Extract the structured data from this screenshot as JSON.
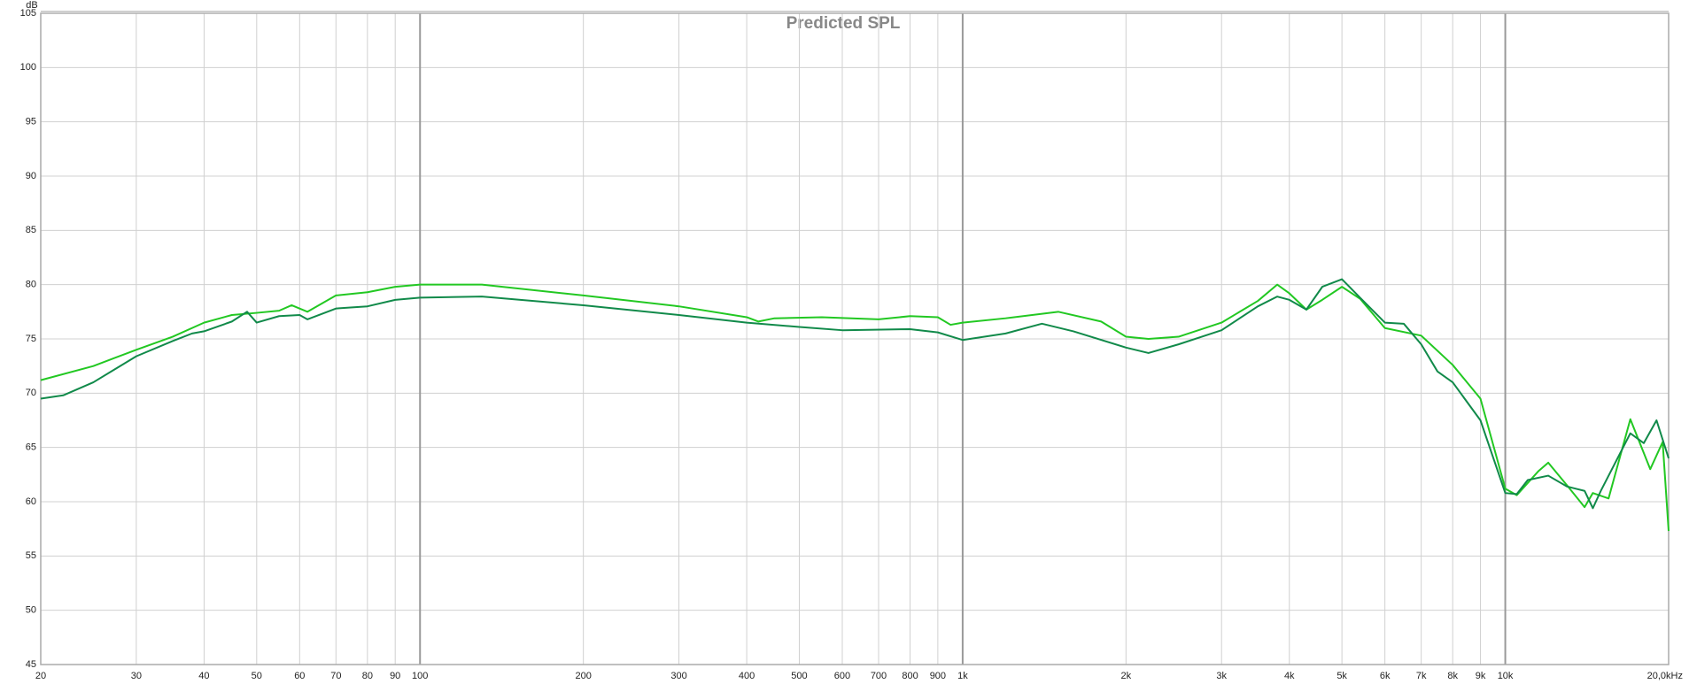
{
  "chart_data": {
    "type": "line",
    "title": "Predicted SPL",
    "ylabel": "dB",
    "xscale": "log",
    "grid": true,
    "xlim": [
      20,
      20000
    ],
    "ylim": [
      45,
      105
    ],
    "xticks": [
      20,
      30,
      40,
      50,
      60,
      70,
      80,
      90,
      100,
      200,
      300,
      400,
      500,
      600,
      700,
      800,
      900,
      {
        "value": 1000,
        "label": "1k"
      },
      {
        "value": 2000,
        "label": "2k"
      },
      {
        "value": 3000,
        "label": "3k"
      },
      {
        "value": 4000,
        "label": "4k"
      },
      {
        "value": 5000,
        "label": "5k"
      },
      {
        "value": 6000,
        "label": "6k"
      },
      {
        "value": 7000,
        "label": "7k"
      },
      {
        "value": 8000,
        "label": "8k"
      },
      {
        "value": 9000,
        "label": "9k"
      },
      {
        "value": 10000,
        "label": "10k"
      },
      {
        "value": 20000,
        "label": "20,0kHz"
      }
    ],
    "yticks": [
      45,
      50,
      55,
      60,
      65,
      70,
      75,
      80,
      85,
      90,
      95,
      100,
      105
    ],
    "series": [
      {
        "color": "#22c822",
        "x": [
          20,
          25,
          30,
          35,
          40,
          45,
          50,
          55,
          58,
          62,
          70,
          80,
          90,
          100,
          130,
          200,
          300,
          400,
          420,
          450,
          550,
          700,
          800,
          900,
          950,
          1000,
          1200,
          1500,
          1800,
          2000,
          2200,
          2500,
          3000,
          3500,
          3800,
          4000,
          4300,
          4600,
          5000,
          5400,
          6000,
          7000,
          8000,
          9000,
          10000,
          10500,
          11500,
          12000,
          13000,
          14000,
          14500,
          15500,
          17000,
          18500,
          19500,
          20000
        ],
        "values": [
          71.2,
          72.5,
          74,
          75.2,
          76.5,
          77.2,
          77.4,
          77.6,
          78.1,
          77.5,
          79,
          79.3,
          79.8,
          80,
          80,
          79,
          78,
          77,
          76.6,
          76.9,
          77,
          76.8,
          77.1,
          77,
          76.3,
          76.5,
          76.9,
          77.5,
          76.6,
          75.2,
          75,
          75.2,
          76.5,
          78.5,
          80,
          79.2,
          77.7,
          78.6,
          79.8,
          78.7,
          76,
          75.3,
          72.6,
          69.5,
          61.2,
          60.6,
          62.8,
          63.6,
          61.5,
          59.5,
          60.8,
          60.3,
          67.6,
          63,
          65.5,
          57.3
        ]
      },
      {
        "color": "#118a4a",
        "x": [
          20,
          22,
          25,
          30,
          35,
          38,
          40,
          45,
          48,
          50,
          55,
          60,
          62,
          70,
          75,
          80,
          90,
          100,
          130,
          200,
          300,
          400,
          500,
          600,
          800,
          900,
          1000,
          1200,
          1400,
          1600,
          2000,
          2200,
          2500,
          3000,
          3500,
          3800,
          4000,
          4300,
          4600,
          5000,
          5400,
          6000,
          6500,
          7000,
          7500,
          8000,
          9000,
          10000,
          10500,
          11000,
          12000,
          13000,
          14000,
          14500,
          15000,
          17000,
          18000,
          19000,
          20000
        ],
        "values": [
          69.5,
          69.8,
          71,
          73.4,
          74.8,
          75.5,
          75.7,
          76.6,
          77.5,
          76.5,
          77.1,
          77.2,
          76.8,
          77.8,
          77.9,
          78,
          78.6,
          78.8,
          78.9,
          78.1,
          77.2,
          76.5,
          76.1,
          75.8,
          75.9,
          75.6,
          74.9,
          75.5,
          76.4,
          75.7,
          74.2,
          73.7,
          74.5,
          75.8,
          78,
          78.9,
          78.6,
          77.7,
          79.8,
          80.5,
          78.8,
          76.5,
          76.4,
          74.5,
          72,
          71,
          67.5,
          60.8,
          60.7,
          62,
          62.4,
          61.4,
          61,
          59.4,
          61,
          66.3,
          65.4,
          67.5,
          64
        ]
      }
    ]
  }
}
